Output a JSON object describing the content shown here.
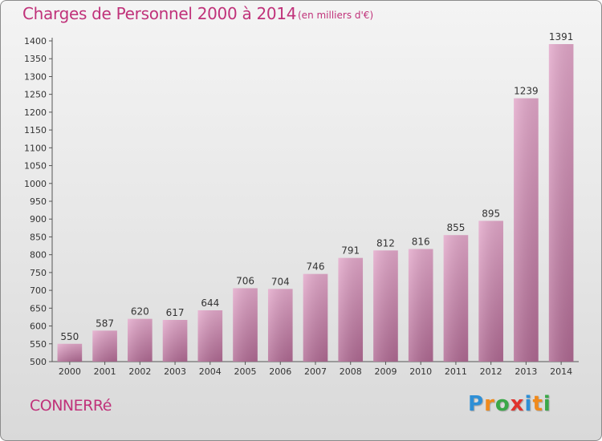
{
  "chart_data": {
    "type": "bar",
    "title": "Charges de Personnel 2000 à 2014",
    "subtitle": "(en milliers d'€)",
    "categories": [
      "2000",
      "2001",
      "2002",
      "2003",
      "2004",
      "2005",
      "2006",
      "2007",
      "2008",
      "2009",
      "2010",
      "2011",
      "2012",
      "2013",
      "2014"
    ],
    "values": [
      550,
      587,
      620,
      617,
      644,
      706,
      704,
      746,
      791,
      812,
      816,
      855,
      895,
      1239,
      1391
    ],
    "ylim": [
      500,
      1400
    ],
    "yticks": [
      500,
      550,
      600,
      650,
      700,
      750,
      800,
      850,
      900,
      950,
      1000,
      1050,
      1100,
      1150,
      1200,
      1250,
      1300,
      1350,
      1400
    ],
    "grid": false,
    "data_labels": true,
    "colors": {
      "bar_top": "#e3a8ca",
      "bar_bottom": "#b06a93",
      "accent": "#c0327a"
    }
  },
  "footer": {
    "commune": "CONNERRé",
    "brand": "Proxiti",
    "brand_colors": [
      "#2e8fd6",
      "#f08a1c",
      "#3aa848",
      "#e0342e",
      "#2e8fd6",
      "#f08a1c",
      "#3aa848"
    ]
  }
}
